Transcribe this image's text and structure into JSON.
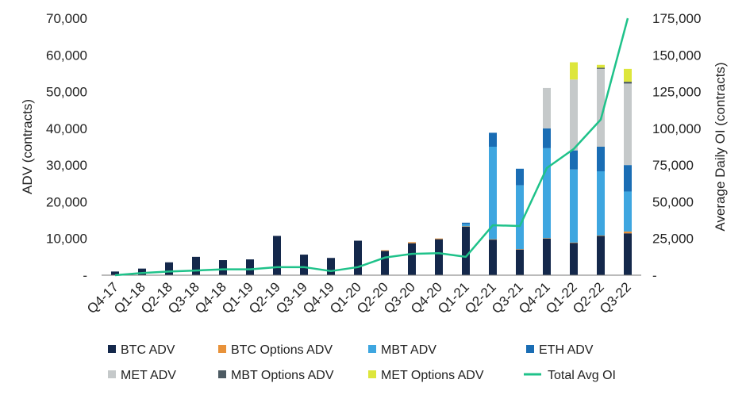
{
  "chart_data": {
    "type": "bar",
    "stacked": true,
    "title": "",
    "ylabel_left": "ADV (contracts)",
    "ylabel_right": "Average Daily OI (contracts)",
    "ylim_left": [
      0,
      70000
    ],
    "ylim_right": [
      0,
      175000
    ],
    "yticks_left": [
      "-",
      "10,000",
      "20,000",
      "30,000",
      "40,000",
      "50,000",
      "60,000",
      "70,000"
    ],
    "yticks_right": [
      "-",
      "25,000",
      "50,000",
      "75,000",
      "100,000",
      "125,000",
      "150,000",
      "175,000"
    ],
    "grid": false,
    "legend_position": "bottom",
    "categories": [
      "Q4-17",
      "Q1-18",
      "Q2-18",
      "Q3-18",
      "Q4-18",
      "Q1-19",
      "Q2-19",
      "Q3-19",
      "Q4-19",
      "Q1-20",
      "Q2-20",
      "Q3-20",
      "Q4-20",
      "Q1-21",
      "Q2-21",
      "Q3-21",
      "Q4-21",
      "Q1-22",
      "Q2-22",
      "Q3-22"
    ],
    "series": [
      {
        "name": "BTC ADV",
        "type": "bar",
        "axis": "left",
        "color": "#14284b",
        "values": [
          1000,
          1800,
          3500,
          5000,
          4100,
          4300,
          10700,
          5600,
          4700,
          9400,
          6600,
          8700,
          9800,
          13200,
          9700,
          7000,
          10000,
          8800,
          10700,
          11400
        ]
      },
      {
        "name": "BTC Options ADV",
        "type": "bar",
        "axis": "left",
        "color": "#e8923a",
        "values": [
          0,
          0,
          0,
          0,
          0,
          0,
          0,
          0,
          0,
          0,
          200,
          300,
          200,
          100,
          100,
          100,
          100,
          100,
          100,
          500
        ]
      },
      {
        "name": "MBT ADV",
        "type": "bar",
        "axis": "left",
        "color": "#3ea6e0",
        "values": [
          0,
          0,
          0,
          0,
          0,
          0,
          0,
          0,
          0,
          0,
          0,
          0,
          0,
          600,
          25200,
          17400,
          24500,
          19900,
          17500,
          10900
        ]
      },
      {
        "name": "ETH ADV",
        "type": "bar",
        "axis": "left",
        "color": "#1a6db4",
        "values": [
          0,
          0,
          0,
          0,
          0,
          0,
          0,
          0,
          0,
          0,
          0,
          0,
          0,
          400,
          3800,
          4500,
          5400,
          5200,
          6700,
          7200
        ]
      },
      {
        "name": "MET ADV",
        "type": "bar",
        "axis": "left",
        "color": "#c5c9ca",
        "values": [
          0,
          0,
          0,
          0,
          0,
          0,
          0,
          0,
          0,
          0,
          0,
          0,
          0,
          0,
          0,
          0,
          11000,
          19300,
          21200,
          22200
        ]
      },
      {
        "name": "MBT Options ADV",
        "type": "bar",
        "axis": "left",
        "color": "#4d5b63",
        "values": [
          0,
          0,
          0,
          0,
          0,
          0,
          0,
          0,
          0,
          0,
          0,
          0,
          0,
          0,
          0,
          0,
          0,
          0,
          300,
          500
        ]
      },
      {
        "name": "MET Options ADV",
        "type": "bar",
        "axis": "left",
        "color": "#dde63c",
        "values": [
          0,
          0,
          0,
          0,
          0,
          0,
          0,
          0,
          0,
          0,
          0,
          0,
          0,
          0,
          0,
          0,
          0,
          4700,
          800,
          3500
        ]
      },
      {
        "name": "Total Avg OI",
        "type": "line",
        "axis": "right",
        "color": "#1fc28a",
        "values": [
          0,
          1500,
          2500,
          3200,
          4000,
          4000,
          5500,
          5500,
          2800,
          5500,
          12000,
          14500,
          15000,
          12500,
          34000,
          33500,
          73000,
          86000,
          106000,
          175000
        ]
      }
    ]
  },
  "legend": [
    {
      "label": "BTC ADV",
      "swatch": "square",
      "color": "#14284b"
    },
    {
      "label": "BTC Options ADV",
      "swatch": "square",
      "color": "#e8923a"
    },
    {
      "label": "MBT ADV",
      "swatch": "square",
      "color": "#3ea6e0"
    },
    {
      "label": "ETH ADV",
      "swatch": "square",
      "color": "#1a6db4"
    },
    {
      "label": "MET ADV",
      "swatch": "square",
      "color": "#c5c9ca"
    },
    {
      "label": "MBT Options ADV",
      "swatch": "square",
      "color": "#4d5b63"
    },
    {
      "label": "MET Options ADV",
      "swatch": "square",
      "color": "#dde63c"
    },
    {
      "label": "Total Avg OI",
      "swatch": "line",
      "color": "#1fc28a"
    }
  ]
}
